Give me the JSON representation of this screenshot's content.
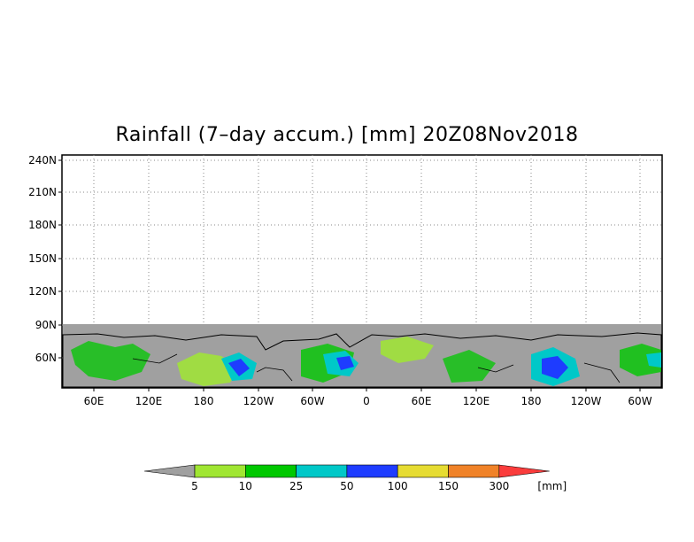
{
  "title": "Rainfall (7–day accum.) [mm] 20Z08Nov2018",
  "map": {
    "lat_ticks": [
      "240N",
      "210N",
      "180N",
      "150N",
      "120N",
      "90N",
      "60N"
    ],
    "lon_ticks": [
      "60E",
      "120E",
      "180",
      "120W",
      "60W",
      "0",
      "60E",
      "120E",
      "180",
      "120W",
      "60W"
    ],
    "land_color": "#a0a0a0",
    "grid": "dotted"
  },
  "colorbar": {
    "levels": [
      "5",
      "10",
      "25",
      "50",
      "100",
      "150",
      "300"
    ],
    "unit": "[mm]",
    "colors": [
      "#a0a0a0",
      "#a0e632",
      "#00c800",
      "#00c8c8",
      "#1e3cff",
      "#e6dc32",
      "#f08228",
      "#fa3c3c"
    ]
  }
}
